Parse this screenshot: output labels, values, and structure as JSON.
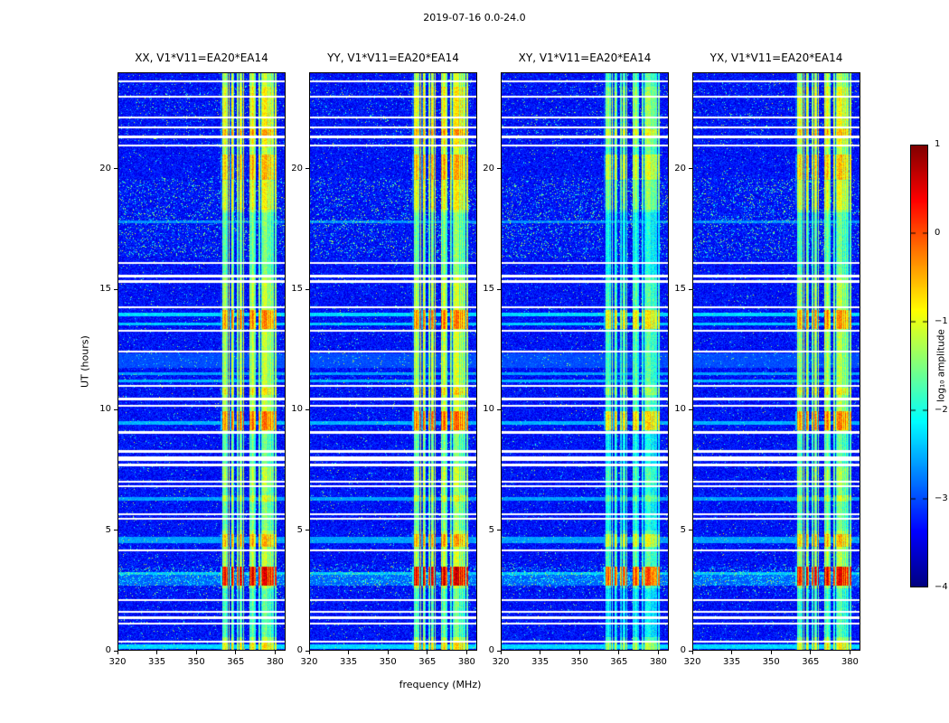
{
  "chart_data": {
    "type": "heatmap",
    "title": "2019-07-16 0.0-24.0",
    "xlabel": "frequency (MHz)",
    "ylabel": "UT (hours)",
    "x_range": [
      320,
      384
    ],
    "y_range": [
      0,
      24
    ],
    "x_ticks": [
      "320",
      "335",
      "350",
      "365",
      "380"
    ],
    "x_tick_values": [
      320,
      335,
      350,
      365,
      380
    ],
    "y_ticks": [
      "0",
      "5",
      "10",
      "15",
      "20"
    ],
    "y_tick_values": [
      0,
      5,
      10,
      15,
      20
    ],
    "panels": [
      {
        "label": "XX, V1*V11=EA20*EA14",
        "pol": "XX",
        "rfi_scale": 1.0,
        "seed": 101
      },
      {
        "label": "YY, V1*V11=EA20*EA14",
        "pol": "YY",
        "rfi_scale": 1.03,
        "seed": 202
      },
      {
        "label": "XY, V1*V11=EA20*EA14",
        "pol": "XY",
        "rfi_scale": 0.78,
        "seed": 303
      },
      {
        "label": "YX, V1*V11=EA20*EA14",
        "pol": "YX",
        "rfi_scale": 0.97,
        "seed": 404
      }
    ],
    "colorbar": {
      "label": "log₁₀ amplitude",
      "ticks": [
        "1",
        "0",
        "−1",
        "−2",
        "−3",
        "−4"
      ],
      "tick_values": [
        1,
        0,
        -1,
        -2,
        -3,
        -4
      ],
      "range": [
        -4,
        1
      ],
      "colormap": "jet"
    },
    "noise_floor": -3.65,
    "rfi": {
      "band_mhz": [
        359.2,
        380.4
      ],
      "sub_bands": [
        [
          359.2,
          364.4
        ],
        [
          365.4,
          368.2
        ],
        [
          370.2,
          372.8
        ],
        [
          373.8,
          380.4
        ]
      ],
      "base_level": -3.4,
      "gain_span": 2.55
    },
    "events": [
      [
        0.0,
        0.4,
        0.45
      ],
      [
        0.55,
        2.6,
        -0.5
      ],
      [
        2.7,
        3.5,
        1.75
      ],
      [
        4.3,
        4.85,
        0.75
      ],
      [
        5.0,
        6.8,
        -0.3
      ],
      [
        6.2,
        6.45,
        0.5
      ],
      [
        7.6,
        9.1,
        -0.4
      ],
      [
        9.15,
        9.95,
        1.05
      ],
      [
        10.6,
        10.9,
        0.45
      ],
      [
        13.35,
        14.15,
        0.95
      ],
      [
        15.6,
        18.2,
        -0.35
      ],
      [
        18.3,
        19.5,
        0.3
      ],
      [
        19.55,
        20.6,
        0.7
      ],
      [
        20.9,
        23.4,
        0.35
      ],
      [
        21.35,
        21.65,
        0.45
      ]
    ],
    "white_rows": [
      [
        23.62,
        0.07
      ],
      [
        23.0,
        0.07
      ],
      [
        22.12,
        0.07
      ],
      [
        21.72,
        0.07
      ],
      [
        21.32,
        0.1
      ],
      [
        20.95,
        0.07
      ],
      [
        16.1,
        0.07
      ],
      [
        15.55,
        0.09
      ],
      [
        15.32,
        0.09
      ],
      [
        14.25,
        0.07
      ],
      [
        13.28,
        0.07
      ],
      [
        12.42,
        0.07
      ],
      [
        11.0,
        0.07
      ],
      [
        10.45,
        0.09
      ],
      [
        10.15,
        0.07
      ],
      [
        9.05,
        0.09
      ],
      [
        8.28,
        0.11
      ],
      [
        7.97,
        0.16
      ],
      [
        7.7,
        0.11
      ],
      [
        7.02,
        0.09
      ],
      [
        6.82,
        0.07
      ],
      [
        5.66,
        0.09
      ],
      [
        5.48,
        0.07
      ],
      [
        4.15,
        0.07
      ],
      [
        2.1,
        0.07
      ],
      [
        1.62,
        0.09
      ],
      [
        1.38,
        0.11
      ],
      [
        1.12,
        0.09
      ],
      [
        0.38,
        0.07
      ]
    ],
    "cyan_rows": [
      [
        0.18,
        0.18,
        -2.3
      ],
      [
        2.95,
        0.5,
        -2.9
      ],
      [
        3.2,
        0.12,
        -2.4
      ],
      [
        4.6,
        0.25,
        -2.6
      ],
      [
        6.3,
        0.12,
        -2.6
      ],
      [
        9.45,
        0.15,
        -2.5
      ],
      [
        11.2,
        0.12,
        -2.5
      ],
      [
        11.5,
        0.12,
        -2.6
      ],
      [
        12.05,
        0.6,
        -3.0
      ],
      [
        13.55,
        0.12,
        -2.4
      ],
      [
        13.95,
        0.15,
        -2.3
      ],
      [
        17.8,
        0.1,
        -2.7
      ]
    ],
    "speckle_regions": [
      [
        16.3,
        19.6,
        0.1
      ],
      [
        2.3,
        3.6,
        0.055
      ],
      [
        21.0,
        23.5,
        0.04
      ],
      [
        11.8,
        12.4,
        0.03
      ]
    ]
  }
}
